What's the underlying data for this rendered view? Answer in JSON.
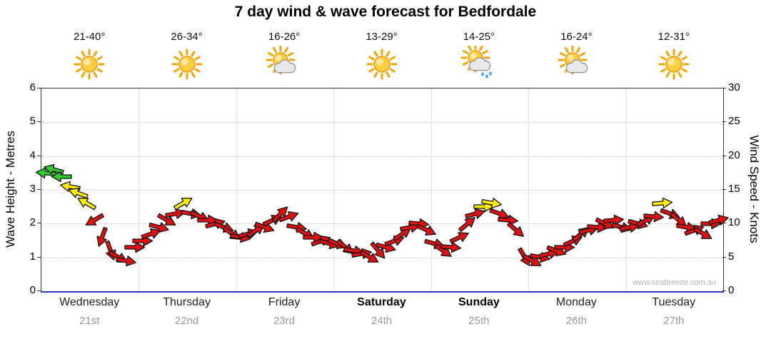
{
  "chart_data": {
    "type": "wind-arrows",
    "title": "7 day wind & wave forecast for Bedfordale",
    "watermark": "www.seabreeze.com.au",
    "y_left": {
      "label": "Wave Height - Metres",
      "min": 0,
      "max": 6,
      "ticks": [
        0,
        1,
        2,
        3,
        4,
        5,
        6
      ]
    },
    "y_right": {
      "label": "Wind Speed - Knots",
      "min": 0,
      "max": 30,
      "ticks": [
        0,
        5,
        10,
        15,
        20,
        25,
        30
      ]
    },
    "grid": {
      "horizontal": true,
      "vertical_day_boundaries": true
    },
    "color_thresholds": {
      "green_min_knots": 16.5,
      "yellow_min_knots": 12.5
    },
    "colors": {
      "green": "#2ecc2e",
      "yellow": "#ffee00",
      "red": "#e31010",
      "arrow_outline": "#111111",
      "axis_bottom": "#3333cc"
    },
    "days": [
      {
        "name": "Wednesday",
        "date": "21st",
        "bold": false,
        "temp": "21-40°",
        "icon": "sunny",
        "wind_speeds_knots": [
          17.5,
          18,
          17,
          15.5,
          14.5,
          13,
          10.5,
          8,
          6,
          5,
          4.5,
          6.5
        ],
        "wind_dirs_deg": [
          185,
          195,
          180,
          190,
          200,
          210,
          150,
          110,
          70,
          30,
          10,
          0
        ]
      },
      {
        "name": "Thursday",
        "date": "22nd",
        "bold": false,
        "temp": "26-34°",
        "icon": "sunny",
        "wind_speeds_knots": [
          7.5,
          8.5,
          9.5,
          10.5,
          11.5,
          13,
          11.5,
          11,
          10.5,
          10,
          9.5,
          8.5
        ],
        "wind_dirs_deg": [
          0,
          -20,
          15,
          30,
          -10,
          -30,
          10,
          25,
          0,
          -15,
          20,
          35
        ]
      },
      {
        "name": "Friday",
        "date": "23rd",
        "bold": false,
        "temp": "16-26°",
        "icon": "partly",
        "wind_speeds_knots": [
          8,
          8.5,
          9,
          9.5,
          10.5,
          11.5,
          11,
          9.5,
          8.5,
          8,
          7.5,
          7
        ],
        "wind_dirs_deg": [
          10,
          -15,
          -35,
          20,
          -25,
          -45,
          -20,
          10,
          30,
          0,
          -20,
          15
        ]
      },
      {
        "name": "Saturday",
        "date": "24th",
        "bold": true,
        "temp": "13-29°",
        "icon": "sunny",
        "wind_speeds_knots": [
          7,
          6.5,
          6,
          5.5,
          5,
          6,
          6.5,
          7.5,
          8.5,
          9.5,
          10,
          9
        ],
        "wind_dirs_deg": [
          20,
          40,
          10,
          -10,
          30,
          50,
          15,
          -20,
          -35,
          -10,
          5,
          25
        ]
      },
      {
        "name": "Sunday",
        "date": "25th",
        "bold": true,
        "temp": "14-25°",
        "icon": "rain",
        "wind_speeds_knots": [
          7,
          6,
          6.5,
          8,
          10,
          11.5,
          12.5,
          13,
          11.5,
          10.5,
          9,
          5
        ],
        "wind_dirs_deg": [
          15,
          35,
          5,
          -25,
          -40,
          -15,
          0,
          10,
          20,
          5,
          40,
          60
        ]
      },
      {
        "name": "Monday",
        "date": "26th",
        "bold": false,
        "temp": "16-24°",
        "icon": "partly",
        "wind_speeds_knots": [
          4.5,
          5,
          5.5,
          6,
          6.5,
          7.5,
          8.5,
          9,
          9.5,
          10,
          10.5,
          9.5
        ],
        "wind_dirs_deg": [
          30,
          10,
          -15,
          20,
          0,
          -25,
          -40,
          -15,
          5,
          25,
          -5,
          15
        ]
      },
      {
        "name": "Tuesday",
        "date": "27th",
        "bold": false,
        "temp": "12-31°",
        "icon": "sunny",
        "wind_speeds_knots": [
          9.5,
          10,
          10.5,
          11,
          13,
          11.5,
          10.5,
          9.5,
          9,
          8.5,
          10,
          10.5
        ],
        "wind_dirs_deg": [
          -10,
          15,
          -30,
          5,
          -5,
          20,
          40,
          10,
          -20,
          30,
          0,
          -15
        ]
      }
    ]
  }
}
